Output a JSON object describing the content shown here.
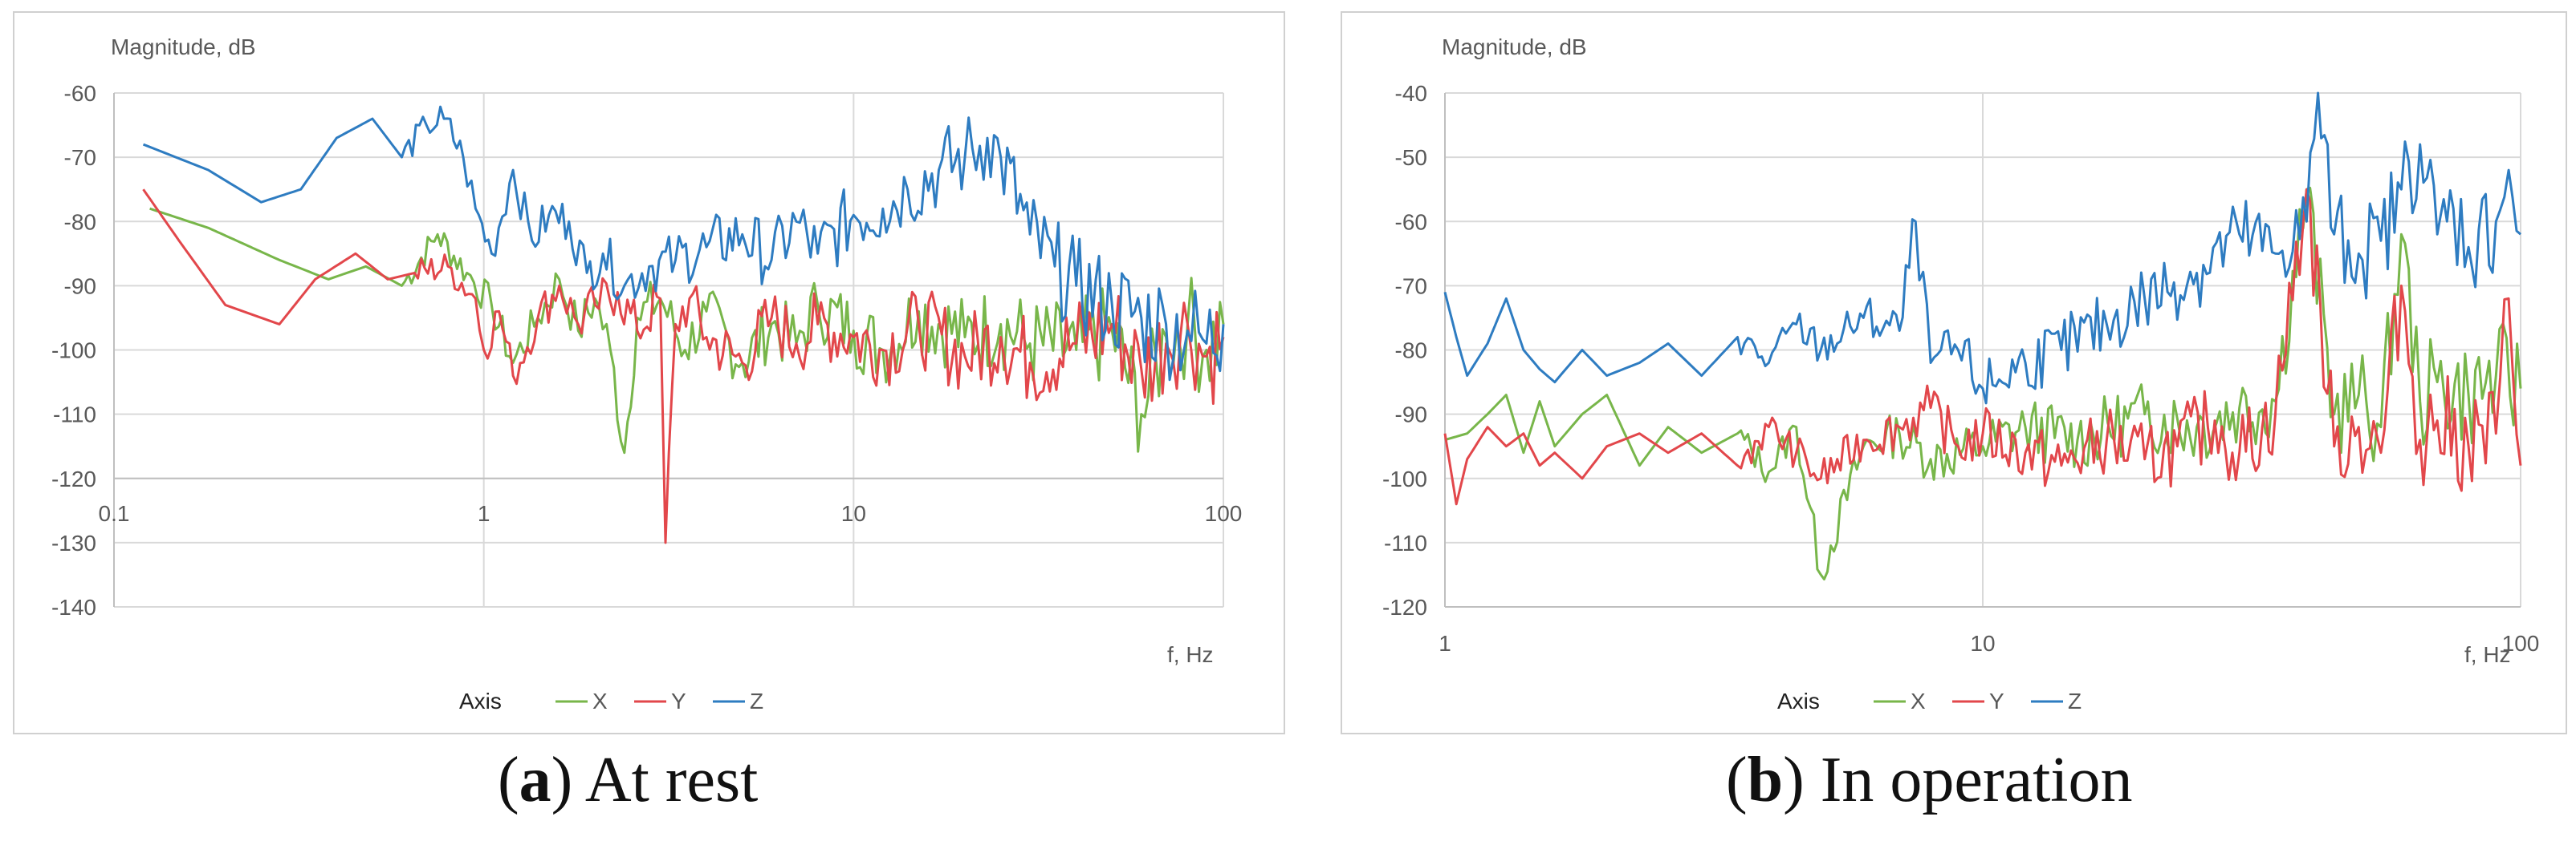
{
  "colors": {
    "X": "#78b64a",
    "Y": "#e2474b",
    "Z": "#2e7cc1",
    "grid": "#d9d9d9",
    "axis": "#bfbfbf",
    "text": "#595959",
    "frame": "#d0d0d0"
  },
  "chart_data": [
    {
      "type": "line",
      "xscale": "log",
      "xlim": [
        0.1,
        100
      ],
      "ylim": [
        -140,
        -60
      ],
      "ylabel": "Magnitude, dB",
      "xlabel": "f, Hz",
      "grid": true,
      "legend_title": "Axis",
      "legend_position": "bottom",
      "xticks": [
        "0.1",
        "1",
        "10",
        "100"
      ],
      "yticks": [
        "-60",
        "-70",
        "-80",
        "-90",
        "-100",
        "-110",
        "-120",
        "-130",
        "-140"
      ],
      "x_tick_axis_y": -120,
      "series": [
        {
          "name": "X",
          "x": [
            0.125,
            0.18,
            0.28,
            0.38,
            0.48,
            0.6,
            0.75,
            0.9,
            1.05,
            1.2,
            1.4,
            1.6,
            1.8,
            2.0,
            2.2,
            2.4,
            2.6,
            3.0,
            3.5,
            4.0,
            5.0,
            6.0,
            7.0,
            8.0,
            10,
            12,
            15,
            20,
            25,
            30,
            40,
            50,
            60,
            70,
            80,
            90,
            100
          ],
          "y": [
            -78,
            -81,
            -86,
            -89,
            -87,
            -90,
            -82,
            -88,
            -93,
            -102,
            -95,
            -89,
            -97,
            -92,
            -100,
            -116,
            -95,
            -92,
            -100,
            -94,
            -102,
            -96,
            -99,
            -93,
            -97,
            -100,
            -94,
            -98,
            -96,
            -99,
            -100,
            -97,
            -110,
            -98,
            -96,
            -100,
            -96
          ]
        },
        {
          "name": "Y",
          "x": [
            0.12,
            0.15,
            0.2,
            0.28,
            0.35,
            0.45,
            0.55,
            0.65,
            0.8,
            0.95,
            1.0,
            1.1,
            1.2,
            1.4,
            1.6,
            1.8,
            2.0,
            2.3,
            2.6,
            3.0,
            3.1,
            3.3,
            3.6,
            4.0,
            5.0,
            6.0,
            7.0,
            8.0,
            10,
            12,
            15,
            20,
            25,
            30,
            40,
            50,
            60,
            70,
            80,
            90,
            100
          ],
          "y": [
            -75,
            -83,
            -93,
            -96,
            -89,
            -85,
            -89,
            -88,
            -87,
            -92,
            -100,
            -94,
            -104,
            -95,
            -90,
            -96,
            -93,
            -91,
            -97,
            -92,
            -130,
            -96,
            -92,
            -98,
            -102,
            -95,
            -99,
            -96,
            -98,
            -100,
            -96,
            -101,
            -98,
            -102,
            -99,
            -96,
            -103,
            -99,
            -96,
            -101,
            -98
          ]
        },
        {
          "name": "Z",
          "x": [
            0.12,
            0.18,
            0.25,
            0.32,
            0.4,
            0.5,
            0.6,
            0.7,
            0.78,
            0.88,
            0.95,
            1.05,
            1.2,
            1.35,
            1.5,
            1.7,
            1.9,
            2.1,
            2.4,
            2.8,
            3.3,
            4.0,
            5.0,
            6.0,
            7.0,
            8.0,
            10,
            12,
            14,
            17,
            20,
            23,
            25,
            30,
            35,
            40,
            50,
            60,
            70,
            80,
            90,
            100
          ],
          "y": [
            -68,
            -72,
            -77,
            -75,
            -67,
            -64,
            -70,
            -65,
            -64,
            -70,
            -78,
            -85,
            -72,
            -83,
            -79,
            -80,
            -88,
            -85,
            -90,
            -87,
            -86,
            -84,
            -82,
            -86,
            -80,
            -85,
            -79,
            -78,
            -75,
            -72,
            -70,
            -67,
            -70,
            -82,
            -87,
            -90,
            -93,
            -95,
            -96,
            -97,
            -99,
            -96
          ]
        }
      ]
    },
    {
      "type": "line",
      "xscale": "log",
      "xlim": [
        1,
        100
      ],
      "ylim": [
        -120,
        -40
      ],
      "ylabel": "Magnitude, dB",
      "xlabel": "f, Hz",
      "grid": true,
      "legend_title": "Axis",
      "legend_position": "bottom",
      "xticks": [
        "1",
        "10",
        "100"
      ],
      "yticks": [
        "-40",
        "-50",
        "-60",
        "-70",
        "-80",
        "-90",
        "-100",
        "-110",
        "-120"
      ],
      "x_tick_axis_y": -120,
      "series": [
        {
          "name": "X",
          "x": [
            1,
            1.1,
            1.2,
            1.3,
            1.4,
            1.5,
            1.6,
            1.8,
            2.0,
            2.3,
            2.6,
            3.0,
            3.5,
            4.0,
            4.5,
            5.0,
            6.0,
            7.0,
            8.0,
            10,
            12,
            15,
            20,
            25,
            30,
            35,
            40,
            45,
            50,
            55,
            60,
            65,
            70,
            80,
            90,
            100
          ],
          "y": [
            -94,
            -93,
            -90,
            -87,
            -96,
            -88,
            -95,
            -90,
            -87,
            -98,
            -92,
            -96,
            -93,
            -99,
            -92,
            -115,
            -95,
            -93,
            -97,
            -95,
            -92,
            -94,
            -90,
            -92,
            -89,
            -88,
            -55,
            -90,
            -87,
            -92,
            -62,
            -88,
            -85,
            -87,
            -84,
            -86
          ]
        },
        {
          "name": "Y",
          "x": [
            1,
            1.05,
            1.1,
            1.2,
            1.3,
            1.4,
            1.5,
            1.6,
            1.8,
            2.0,
            2.3,
            2.6,
            3.0,
            3.5,
            4.0,
            4.5,
            5.0,
            6.0,
            7.0,
            8.0,
            9.0,
            10,
            12,
            14,
            17,
            20,
            23,
            27,
            30,
            35,
            40,
            45,
            50,
            55,
            60,
            65,
            70,
            80,
            90,
            95,
            100
          ],
          "y": [
            -93,
            -104,
            -97,
            -92,
            -95,
            -93,
            -98,
            -96,
            -100,
            -95,
            -93,
            -96,
            -93,
            -98,
            -92,
            -96,
            -100,
            -94,
            -92,
            -89,
            -95,
            -93,
            -96,
            -98,
            -94,
            -97,
            -95,
            -91,
            -96,
            -90,
            -55,
            -95,
            -92,
            -96,
            -70,
            -94,
            -91,
            -95,
            -93,
            -72,
            -98
          ]
        },
        {
          "name": "Z",
          "x": [
            1,
            1.05,
            1.1,
            1.2,
            1.3,
            1.4,
            1.5,
            1.6,
            1.8,
            2.0,
            2.3,
            2.6,
            3.0,
            3.5,
            4.0,
            4.5,
            5.0,
            6.0,
            7.0,
            7.5,
            8.0,
            9.0,
            10,
            12,
            14,
            17,
            20,
            25,
            30,
            35,
            40,
            42,
            45,
            50,
            55,
            60,
            65,
            70,
            75,
            80,
            90,
            95,
            100
          ],
          "y": [
            -71,
            -78,
            -84,
            -79,
            -72,
            -80,
            -83,
            -85,
            -80,
            -84,
            -82,
            -79,
            -84,
            -78,
            -82,
            -76,
            -80,
            -75,
            -77,
            -60,
            -82,
            -80,
            -86,
            -82,
            -80,
            -76,
            -72,
            -68,
            -62,
            -65,
            -60,
            -40,
            -62,
            -65,
            -63,
            -55,
            -48,
            -62,
            -58,
            -64,
            -60,
            -52,
            -62
          ]
        }
      ]
    }
  ],
  "legend": {
    "title": "Axis",
    "items": [
      "X",
      "Y",
      "Z"
    ]
  },
  "captions": [
    {
      "letter": "a",
      "text": "At rest"
    },
    {
      "letter": "b",
      "text": "In operation"
    }
  ]
}
